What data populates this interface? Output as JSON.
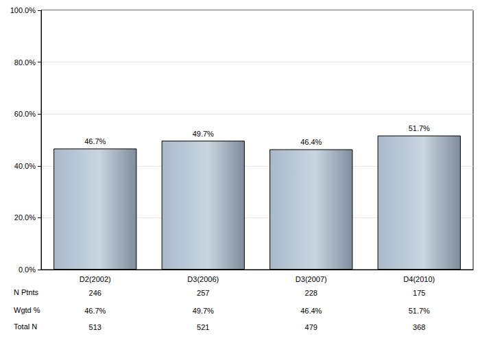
{
  "chart_data": {
    "type": "bar",
    "categories": [
      "D2(2002)",
      "D3(2006)",
      "D3(2007)",
      "D4(2010)"
    ],
    "values": [
      46.7,
      49.7,
      46.4,
      51.7
    ],
    "value_labels": [
      "46.7%",
      "49.7%",
      "46.4%",
      "51.7%"
    ],
    "data_labels": true,
    "color": "#a9b9cb",
    "ylim": [
      0,
      100
    ],
    "yticks": [
      {
        "value": 0,
        "label": "0.0%"
      },
      {
        "value": 20,
        "label": "20.0%"
      },
      {
        "value": 40,
        "label": "40.0%"
      },
      {
        "value": 60,
        "label": "60.0%"
      },
      {
        "value": 80,
        "label": "80.0%"
      },
      {
        "value": 100,
        "label": "100.0%"
      }
    ],
    "grid": true,
    "table": {
      "rows": [
        {
          "label": "N Ptnts",
          "values": [
            246,
            257,
            228,
            175
          ]
        },
        {
          "label": "Wgtd %",
          "values": [
            46.7,
            49.7,
            46.4,
            51.7
          ],
          "value_labels": [
            "46.7%",
            "49.7%",
            "46.4%",
            "51.7%"
          ]
        },
        {
          "label": "Total N",
          "values": [
            513,
            521,
            479,
            368
          ]
        }
      ]
    }
  }
}
